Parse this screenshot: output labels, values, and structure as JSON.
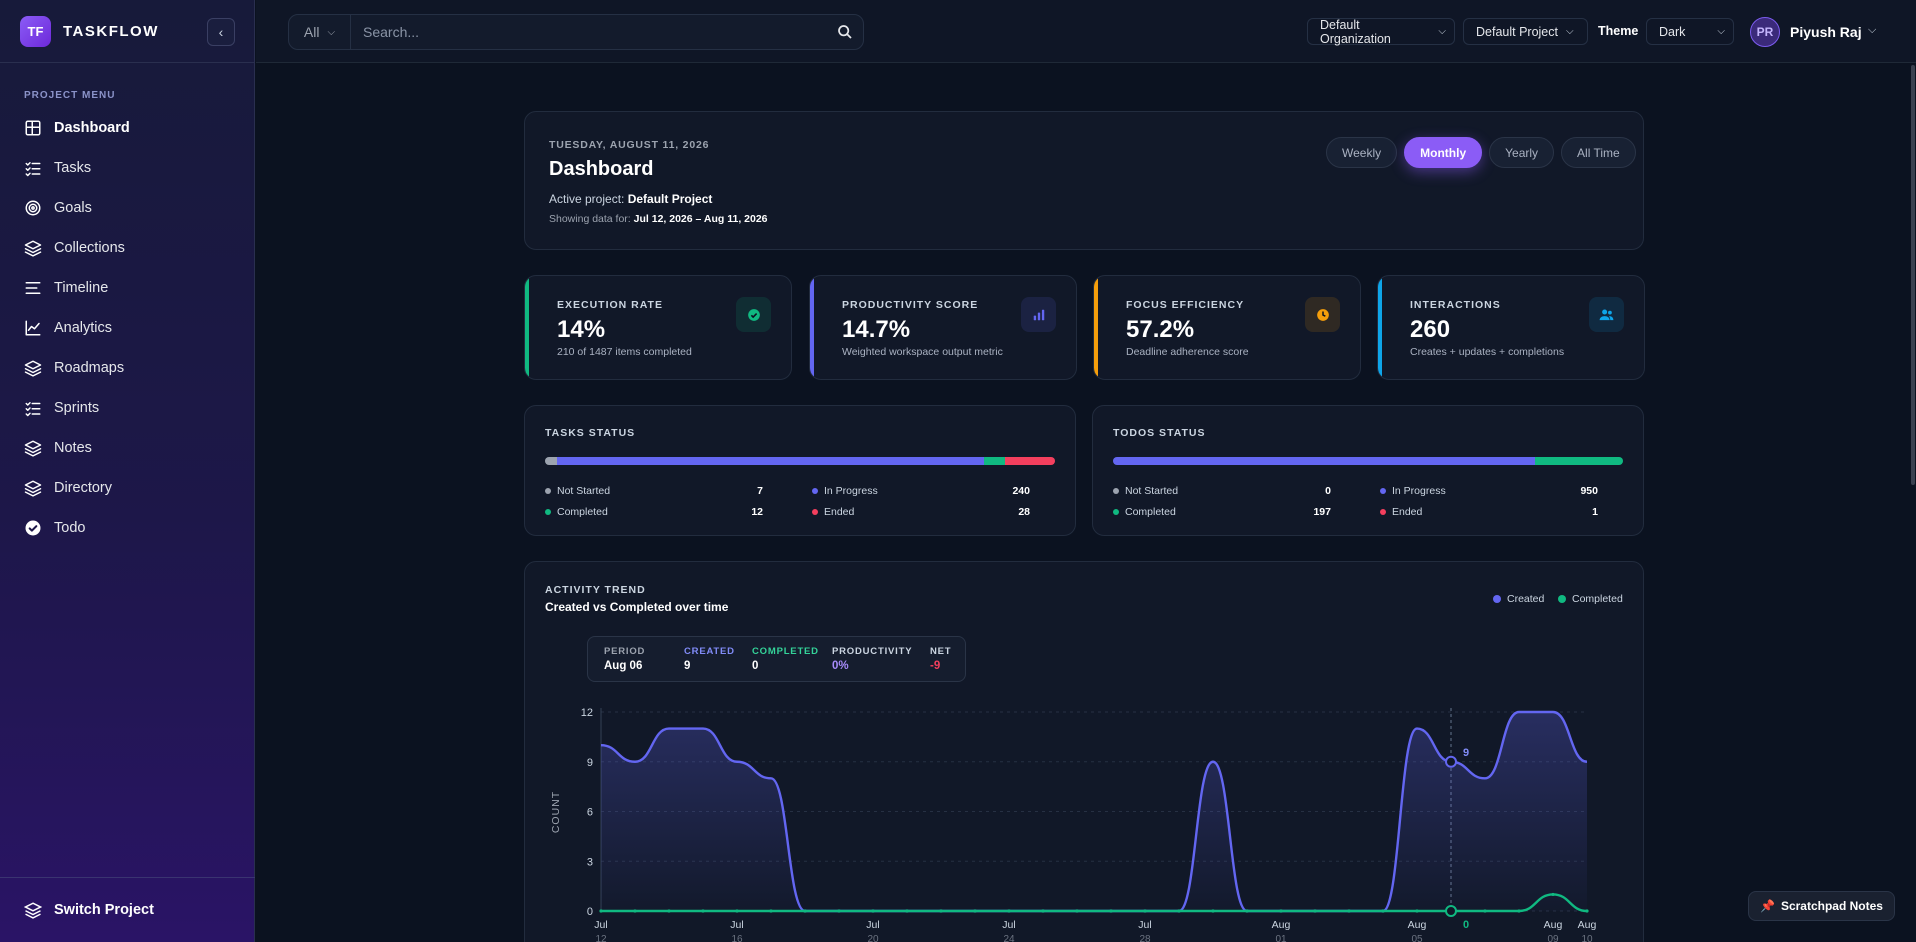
{
  "brand": {
    "logo": "TF",
    "name": "TASKFLOW"
  },
  "sidebar": {
    "menu_title": "PROJECT MENU",
    "items": [
      {
        "label": "Dashboard",
        "icon": "grid-icon",
        "active": true
      },
      {
        "label": "Tasks",
        "icon": "list-check-icon"
      },
      {
        "label": "Goals",
        "icon": "target-icon"
      },
      {
        "label": "Collections",
        "icon": "layers-icon"
      },
      {
        "label": "Timeline",
        "icon": "timeline-icon"
      },
      {
        "label": "Analytics",
        "icon": "chart-line-icon"
      },
      {
        "label": "Roadmaps",
        "icon": "layers-icon"
      },
      {
        "label": "Sprints",
        "icon": "list-check-icon"
      },
      {
        "label": "Notes",
        "icon": "layers-icon"
      },
      {
        "label": "Directory",
        "icon": "layers-icon"
      },
      {
        "label": "Todo",
        "icon": "check-circle-icon"
      }
    ],
    "footer_label": "Switch Project"
  },
  "topbar": {
    "search_scope": "All",
    "search_placeholder": "Search...",
    "organization": "Default Organization",
    "project": "Default Project",
    "theme_label": "Theme",
    "theme_value": "Dark",
    "user_initials": "PR",
    "user_name": "Piyush Raj"
  },
  "header": {
    "date": "TUESDAY, AUGUST 11, 2026",
    "title": "Dashboard",
    "active_project_label": "Active project:",
    "active_project": "Default Project",
    "showing_label": "Showing data for:",
    "showing_range": "Jul 12, 2026 – Aug 11, 2026",
    "range_tabs": [
      "Weekly",
      "Monthly",
      "Yearly",
      "All Time"
    ],
    "active_tab": "Monthly"
  },
  "stats": [
    {
      "label": "EXECUTION RATE",
      "value": "14%",
      "sub": "210 of 1487 items completed",
      "color": "#10b981",
      "icon": "check-circle-icon"
    },
    {
      "label": "PRODUCTIVITY SCORE",
      "value": "14.7%",
      "sub": "Weighted workspace output metric",
      "color": "#6366f1",
      "icon": "bar-chart-icon"
    },
    {
      "label": "FOCUS EFFICIENCY",
      "value": "57.2%",
      "sub": "Deadline adherence score",
      "color": "#f59e0b",
      "icon": "clock-icon"
    },
    {
      "label": "INTERACTIONS",
      "value": "260",
      "sub": "Creates + updates + completions",
      "color": "#0ea5e9",
      "icon": "users-icon"
    }
  ],
  "tasks_status": {
    "title": "TASKS STATUS",
    "items": [
      {
        "label": "Not Started",
        "value": 7,
        "color": "#9ca3af"
      },
      {
        "label": "In Progress",
        "value": 240,
        "color": "#6366f1"
      },
      {
        "label": "Completed",
        "value": 12,
        "color": "#10b981"
      },
      {
        "label": "Ended",
        "value": 28,
        "color": "#f43f5e"
      }
    ]
  },
  "todos_status": {
    "title": "TODOS STATUS",
    "items": [
      {
        "label": "Not Started",
        "value": 0,
        "color": "#9ca3af"
      },
      {
        "label": "In Progress",
        "value": 950,
        "color": "#6366f1"
      },
      {
        "label": "Completed",
        "value": 197,
        "color": "#10b981"
      },
      {
        "label": "Ended",
        "value": 1,
        "color": "#f43f5e"
      }
    ]
  },
  "trend": {
    "title": "ACTIVITY TREND",
    "subtitle": "Created vs Completed over time",
    "tooltip": {
      "period_label": "PERIOD",
      "period": "Aug 06",
      "created_label": "CREATED",
      "created": "9",
      "completed_label": "COMPLETED",
      "completed": "0",
      "productivity_label": "PRODUCTIVITY",
      "productivity": "0%",
      "net_label": "NET",
      "net": "-9"
    },
    "marker_created": "9",
    "marker_completed": "0"
  },
  "chart_data": {
    "type": "line",
    "ylabel": "COUNT",
    "ylim": [
      0,
      12
    ],
    "yticks": [
      0,
      3,
      6,
      9,
      12
    ],
    "x": [
      "Jul 12",
      "Jul 13",
      "Jul 14",
      "Jul 15",
      "Jul 16",
      "Jul 17",
      "Jul 18",
      "Jul 19",
      "Jul 20",
      "Jul 21",
      "Jul 22",
      "Jul 23",
      "Jul 24",
      "Jul 25",
      "Jul 26",
      "Jul 27",
      "Jul 28",
      "Jul 29",
      "Jul 30",
      "Jul 31",
      "Aug 01",
      "Aug 02",
      "Aug 03",
      "Aug 04",
      "Aug 05",
      "Aug 06",
      "Aug 07",
      "Aug 08",
      "Aug 09",
      "Aug 10"
    ],
    "xtick_labels": [
      {
        "month": "Jul",
        "day": "12"
      },
      {
        "month": "Jul",
        "day": "16"
      },
      {
        "month": "Jul",
        "day": "20"
      },
      {
        "month": "Jul",
        "day": "24"
      },
      {
        "month": "Jul",
        "day": "28"
      },
      {
        "month": "Aug",
        "day": "01"
      },
      {
        "month": "Aug",
        "day": "05"
      },
      {
        "month": "Aug",
        "day": "09"
      },
      {
        "month": "Aug",
        "day": "10"
      }
    ],
    "series": [
      {
        "name": "Created",
        "color": "#6366f1",
        "values": [
          10,
          9,
          11,
          11,
          9,
          8,
          0,
          0,
          0,
          0,
          0,
          0,
          0,
          0,
          0,
          0,
          0,
          0,
          9,
          0,
          0,
          0,
          0,
          0,
          11,
          9,
          8,
          12,
          12,
          9
        ]
      },
      {
        "name": "Completed",
        "color": "#10b981",
        "values": [
          0,
          0,
          0,
          0,
          0,
          0,
          0,
          0,
          0,
          0,
          0,
          0,
          0,
          0,
          0,
          0,
          0,
          0,
          0,
          0,
          0,
          0,
          0,
          0,
          0,
          0,
          0,
          0,
          1,
          0
        ]
      }
    ],
    "highlight_index": 25,
    "legend": "top-right",
    "grid": true
  },
  "scratchpad_label": "Scratchpad Notes"
}
